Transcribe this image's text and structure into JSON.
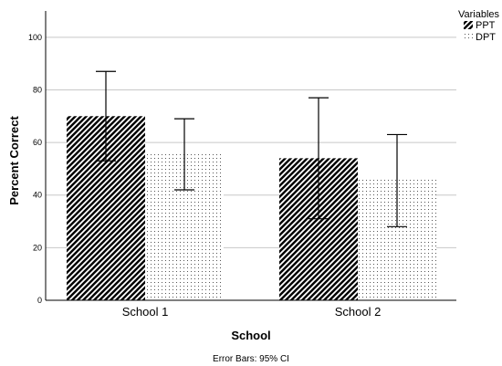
{
  "chart_data": {
    "type": "bar",
    "categories": [
      "School 1",
      "School 2"
    ],
    "series": [
      {
        "name": "PPT",
        "values": [
          70,
          54
        ],
        "ci_low": [
          53,
          31
        ],
        "ci_high": [
          87,
          77
        ]
      },
      {
        "name": "DPT",
        "values": [
          56,
          46
        ],
        "ci_low": [
          42,
          28
        ],
        "ci_high": [
          69,
          63
        ]
      }
    ],
    "xlabel": "School",
    "ylabel": "Percent Correct",
    "ylim": [
      0,
      110
    ],
    "yticks": [
      0,
      20,
      40,
      60,
      80,
      100
    ],
    "grid": true,
    "legend": {
      "title": "Variables",
      "placement": "top-right"
    },
    "footnote": "Error Bars: 95% CI",
    "patterns": {
      "PPT": "diagonal-hatch",
      "DPT": "dots"
    },
    "colors": {
      "gridline": "#c8c8c8",
      "bar_fill": "#ffffff",
      "ink": "#000000"
    }
  }
}
